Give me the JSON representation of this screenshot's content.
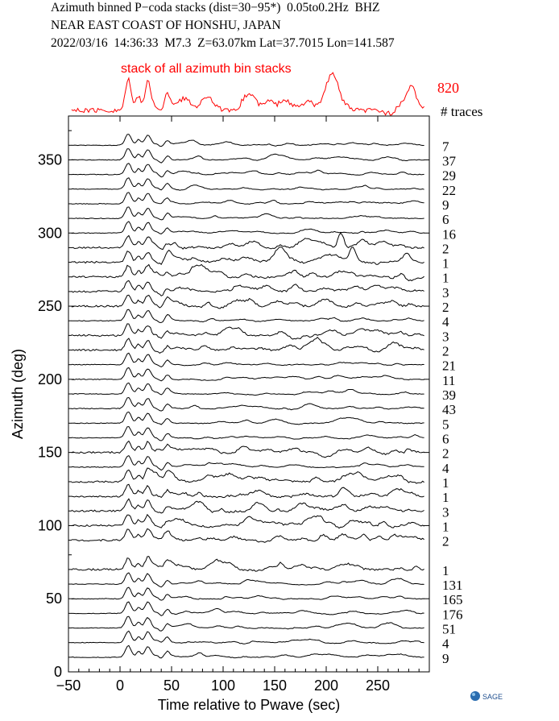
{
  "header": {
    "line1": "Azimuth binned P−coda stacks (dist=30−95*)  0.05to0.2Hz  BHZ",
    "line2": "NEAR EAST COAST OF HONSHU, JAPAN",
    "line3": "2022/03/16  14:36:33  M7.3  Z=63.07km Lat=37.7015 Lon=141.587"
  },
  "logo": {
    "text": "SAGE"
  },
  "chart_data": {
    "type": "line",
    "title": "",
    "xlabel": "Time relative to Pwave (sec)",
    "ylabel": "Azimuth (deg)",
    "xlim": [
      -50,
      300
    ],
    "ylim": [
      0,
      380
    ],
    "xticks": [
      -50,
      0,
      50,
      100,
      150,
      200,
      250
    ],
    "yticks": [
      0,
      50,
      100,
      150,
      200,
      250,
      300,
      350
    ],
    "grid": false,
    "stack": {
      "label": "stack of all azimuth bin stacks",
      "total_traces": "820",
      "color": "#ff0000"
    },
    "traces_header": "# traces",
    "trace_color": "#000000",
    "series": [
      {
        "azimuth": 10,
        "traces": "9"
      },
      {
        "azimuth": 20,
        "traces": "4"
      },
      {
        "azimuth": 30,
        "traces": "51"
      },
      {
        "azimuth": 40,
        "traces": "176"
      },
      {
        "azimuth": 50,
        "traces": "165"
      },
      {
        "azimuth": 60,
        "traces": "131"
      },
      {
        "azimuth": 70,
        "traces": "1"
      },
      {
        "azimuth": 90,
        "traces": "2"
      },
      {
        "azimuth": 100,
        "traces": "1"
      },
      {
        "azimuth": 110,
        "traces": "3"
      },
      {
        "azimuth": 120,
        "traces": "1"
      },
      {
        "azimuth": 130,
        "traces": "1"
      },
      {
        "azimuth": 140,
        "traces": "4"
      },
      {
        "azimuth": 150,
        "traces": "2"
      },
      {
        "azimuth": 160,
        "traces": "6"
      },
      {
        "azimuth": 170,
        "traces": "5"
      },
      {
        "azimuth": 180,
        "traces": "43"
      },
      {
        "azimuth": 190,
        "traces": "39"
      },
      {
        "azimuth": 200,
        "traces": "11"
      },
      {
        "azimuth": 210,
        "traces": "21"
      },
      {
        "azimuth": 220,
        "traces": "2"
      },
      {
        "azimuth": 230,
        "traces": "3"
      },
      {
        "azimuth": 240,
        "traces": "4"
      },
      {
        "azimuth": 250,
        "traces": "2"
      },
      {
        "azimuth": 260,
        "traces": "3"
      },
      {
        "azimuth": 270,
        "traces": "1"
      },
      {
        "azimuth": 280,
        "traces": "1"
      },
      {
        "azimuth": 290,
        "traces": "2"
      },
      {
        "azimuth": 300,
        "traces": "16"
      },
      {
        "azimuth": 310,
        "traces": "6"
      },
      {
        "azimuth": 320,
        "traces": "9"
      },
      {
        "azimuth": 330,
        "traces": "22"
      },
      {
        "azimuth": 340,
        "traces": "29"
      },
      {
        "azimuth": 350,
        "traces": "37"
      },
      {
        "azimuth": 360,
        "traces": "7"
      }
    ]
  }
}
